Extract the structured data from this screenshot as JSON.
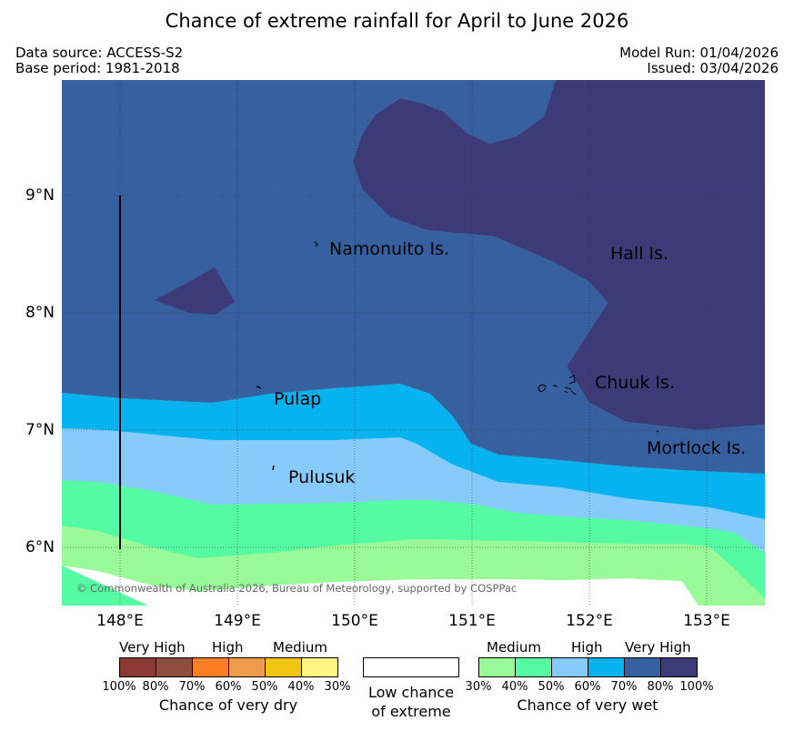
{
  "title": "Chance of extreme rainfall for April to June 2026",
  "meta": {
    "data_source": "Data source: ACCESS-S2",
    "base_period": "Base period: 1981-2018",
    "model_run": "Model Run: 01/04/2026",
    "issued": "Issued: 03/04/2026"
  },
  "map": {
    "lat_labels": [
      "9°N",
      "8°N",
      "7°N",
      "6°N"
    ],
    "lon_labels": [
      "148°E",
      "149°E",
      "150°E",
      "151°E",
      "152°E",
      "153°E"
    ],
    "places": {
      "namonuito": "Namonuito Is.",
      "hall": "Hall Is.",
      "pulap": "Pulap",
      "chuuk": "Chuuk Is.",
      "mortlock": "Mortlock Is.",
      "pulusuk": "Pulusuk"
    },
    "copyright": "© Commonwealth of Australia 2026, Bureau of Meteorology, supported by COSPPac"
  },
  "legend": {
    "dry": {
      "categories": [
        "Very High",
        "High",
        "Medium"
      ],
      "caption": "Chance of very dry",
      "ticks": [
        "100%",
        "80%",
        "70%",
        "60%",
        "50%",
        "40%",
        "30%"
      ],
      "colors": [
        "#8b3a33",
        "#8c4f3f",
        "#fc7f26",
        "#ef9c4a",
        "#f1c40f",
        "#fff585"
      ]
    },
    "neutral": {
      "line1": "Low chance",
      "line2": "of extreme"
    },
    "wet": {
      "categories": [
        "Medium",
        "High",
        "Very High"
      ],
      "caption": "Chance of very wet",
      "ticks": [
        "30%",
        "40%",
        "50%",
        "60%",
        "70%",
        "80%",
        "100%"
      ],
      "colors": [
        "#9afa98",
        "#55fba2",
        "#87cbfa",
        "#06b2ef",
        "#3660a0",
        "#3d3a78"
      ]
    }
  }
}
